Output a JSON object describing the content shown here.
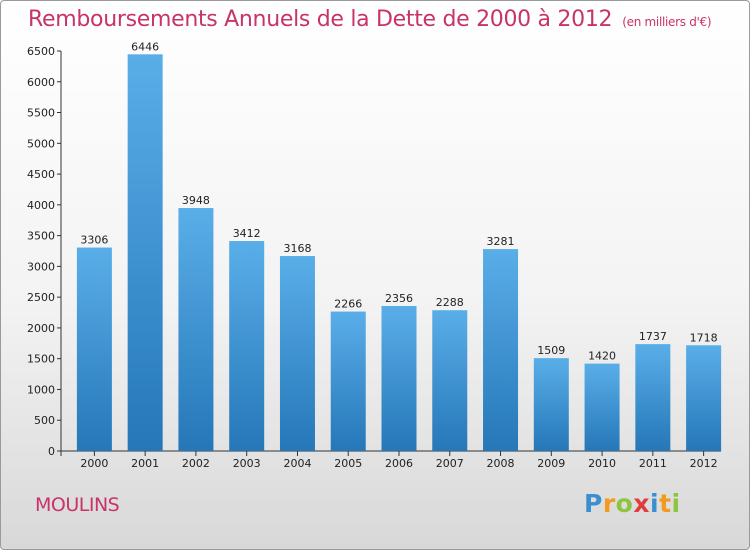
{
  "header": {
    "title": "Remboursements Annuels de la Dette de 2000 à 2012",
    "unit": "(en milliers d'€)"
  },
  "footer": {
    "place": "MOULINS",
    "logo": [
      "P",
      "r",
      "o",
      "x",
      "i",
      "t",
      "i"
    ],
    "logo_colors": [
      "#3b8fd0",
      "#f29a1d",
      "#8cc63f",
      "#e03c3c",
      "#3b8fd0",
      "#f29a1d",
      "#8cc63f"
    ]
  },
  "chart_data": {
    "type": "bar",
    "categories": [
      "2000",
      "2001",
      "2002",
      "2003",
      "2004",
      "2005",
      "2006",
      "2007",
      "2008",
      "2009",
      "2010",
      "2011",
      "2012"
    ],
    "values": [
      3306,
      6446,
      3948,
      3412,
      3168,
      2266,
      2356,
      2288,
      3281,
      1509,
      1420,
      1737,
      1718
    ],
    "yticks": [
      0,
      500,
      1000,
      1500,
      2000,
      2500,
      3000,
      3500,
      4000,
      4500,
      5000,
      5500,
      6000,
      6500
    ],
    "ylim": [
      0,
      6500
    ],
    "bar_color_top": "#5aaee8",
    "bar_color_bottom": "#2577b8",
    "grid": false
  }
}
